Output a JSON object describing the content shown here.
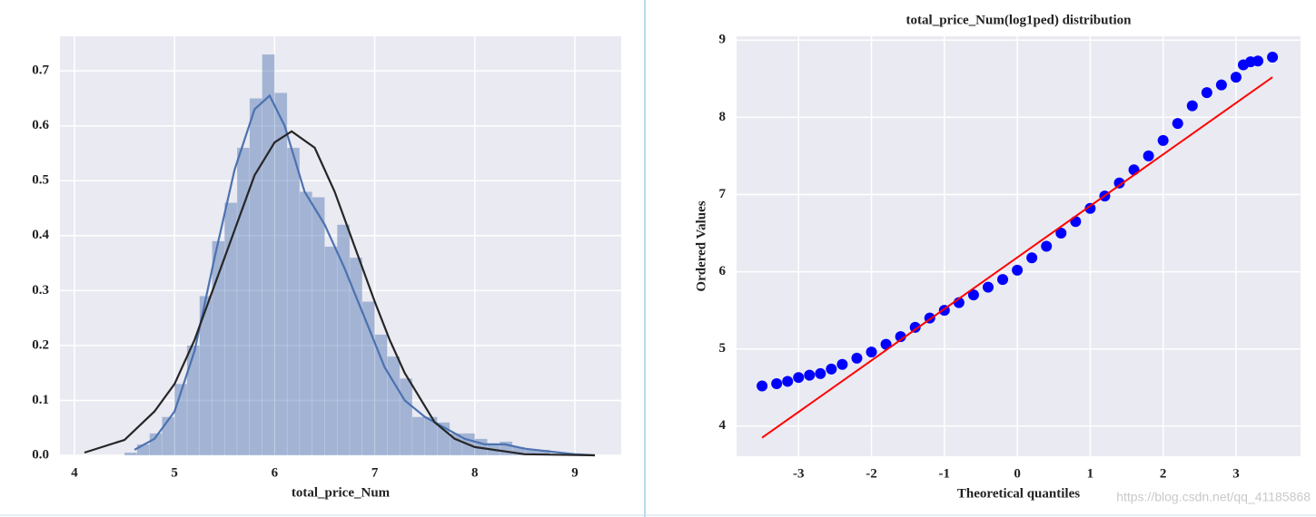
{
  "chart_data": [
    {
      "type": "histogram",
      "xlabel": "total_price_Num",
      "bins": [
        4.5,
        4.625,
        4.75,
        4.875,
        5.0,
        5.125,
        5.25,
        5.375,
        5.5,
        5.625,
        5.75,
        5.875,
        6.0,
        6.125,
        6.25,
        6.375,
        6.5,
        6.625,
        6.75,
        6.875,
        7.0,
        7.125,
        7.25,
        7.375,
        7.5,
        7.625,
        7.75,
        7.875,
        8.0,
        8.125,
        8.25,
        8.375,
        8.5,
        8.625,
        8.75
      ],
      "values": [
        0.005,
        0.02,
        0.04,
        0.07,
        0.13,
        0.2,
        0.29,
        0.39,
        0.46,
        0.56,
        0.65,
        0.73,
        0.66,
        0.56,
        0.48,
        0.47,
        0.38,
        0.42,
        0.36,
        0.28,
        0.22,
        0.18,
        0.14,
        0.07,
        0.07,
        0.06,
        0.04,
        0.04,
        0.03,
        0.02,
        0.025,
        0.015,
        0.01,
        0.01
      ],
      "color": "#4c72b0",
      "lines": [
        {
          "color": "#4c72b0",
          "x": [
            4.6,
            4.8,
            5.0,
            5.2,
            5.4,
            5.6,
            5.8,
            5.95,
            6.1,
            6.3,
            6.5,
            6.7,
            6.9,
            7.1,
            7.3,
            7.5,
            7.7,
            7.9,
            8.1,
            8.3,
            8.5,
            8.7,
            9.0,
            9.2
          ],
          "values": [
            0.01,
            0.03,
            0.08,
            0.19,
            0.36,
            0.52,
            0.63,
            0.655,
            0.6,
            0.48,
            0.42,
            0.34,
            0.25,
            0.16,
            0.1,
            0.07,
            0.05,
            0.03,
            0.02,
            0.02,
            0.012,
            0.008,
            0.002,
            0
          ]
        },
        {
          "color": "#262626",
          "x": [
            4.1,
            4.5,
            4.8,
            5.0,
            5.2,
            5.5,
            5.8,
            6.0,
            6.17,
            6.4,
            6.6,
            6.8,
            7.0,
            7.15,
            7.3,
            7.6,
            7.8,
            8.0,
            8.5,
            9.2
          ],
          "values": [
            0.005,
            0.028,
            0.08,
            0.13,
            0.21,
            0.36,
            0.51,
            0.57,
            0.59,
            0.56,
            0.48,
            0.38,
            0.28,
            0.21,
            0.15,
            0.06,
            0.03,
            0.015,
            0.002,
            0
          ]
        }
      ],
      "xlim": [
        3.855,
        9.463
      ],
      "ylim": [
        0,
        0.763
      ],
      "xticks": [
        4,
        5,
        6,
        7,
        8,
        9
      ],
      "yticks": [
        {
          "value": 0,
          "label": "0.0"
        },
        0.1,
        0.2,
        0.3,
        0.4,
        0.5,
        0.6,
        0.7
      ],
      "grid": true
    },
    {
      "type": "scatter",
      "title": "total_price_Num(log1ped) distribution",
      "xlabel": "Theoretical quantiles",
      "ylabel": "Ordered Values",
      "x": [
        -3.5,
        -3.3,
        -3.15,
        -3.0,
        -2.85,
        -2.7,
        -2.55,
        -2.4,
        -2.2,
        -2.0,
        -1.8,
        -1.6,
        -1.4,
        -1.2,
        -1.0,
        -0.8,
        -0.6,
        -0.4,
        -0.2,
        0,
        0.2,
        0.4,
        0.6,
        0.8,
        1.0,
        1.2,
        1.4,
        1.6,
        1.8,
        2.0,
        2.2,
        2.4,
        2.6,
        2.8,
        3.0,
        3.1,
        3.2,
        3.3,
        3.5
      ],
      "values": [
        4.52,
        4.55,
        4.58,
        4.63,
        4.66,
        4.68,
        4.74,
        4.8,
        4.88,
        4.96,
        5.06,
        5.16,
        5.28,
        5.4,
        5.5,
        5.6,
        5.7,
        5.8,
        5.9,
        6.02,
        6.18,
        6.33,
        6.5,
        6.65,
        6.82,
        6.98,
        7.15,
        7.32,
        7.5,
        7.7,
        7.92,
        8.15,
        8.32,
        8.42,
        8.52,
        8.68,
        8.72,
        8.73,
        8.78
      ],
      "color": "#0000ff",
      "fit": {
        "color": "#ff0000",
        "x": [
          -3.5,
          3.5
        ],
        "values": [
          3.85,
          8.52
        ]
      },
      "xlim": [
        -3.85,
        3.885
      ],
      "ylim": [
        3.61,
        9.05
      ],
      "xticks": [
        -3,
        -2,
        -1,
        0,
        1,
        2,
        3
      ],
      "yticks": [
        4,
        5,
        6,
        7,
        8,
        9
      ],
      "grid": true
    }
  ],
  "watermark": "https://blog.csdn.net/qq_41185868"
}
